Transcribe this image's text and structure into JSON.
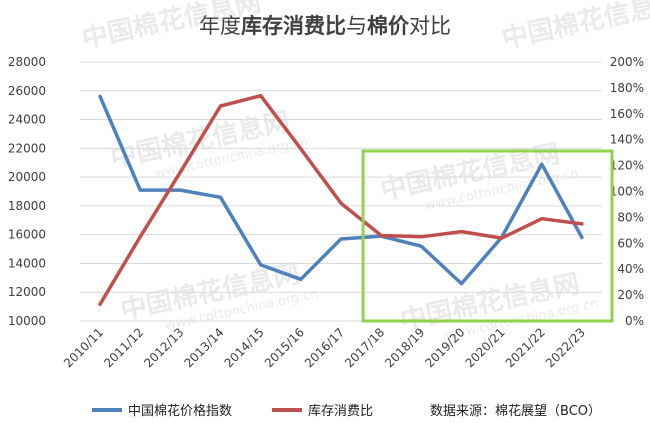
{
  "title_parts": {
    "prefix": "年度",
    "bold1": "库存消费比",
    "middle": "与",
    "bold2": "棉价",
    "suffix": "对比"
  },
  "source_text": "数据来源：棉花展望（BCO）",
  "watermark": {
    "text": "中国棉花信息网",
    "url": "www.cottonchina.org.cn"
  },
  "colors": {
    "index_line": "#4f81bd",
    "ratio_line": "#c0504d",
    "highlight_box": "#92d050",
    "grid": "#d9d9d9"
  },
  "chart_data": {
    "type": "line",
    "categories": [
      "2010/11",
      "2011/12",
      "2012/13",
      "2013/14",
      "2014/15",
      "2015/16",
      "2016/17",
      "2017/18",
      "2018/19",
      "2019/20",
      "2020/21",
      "2021/22",
      "2022/23"
    ],
    "y_left": {
      "min": 10000,
      "max": 28000,
      "step": 2000,
      "ticks": [
        "10000",
        "12000",
        "14000",
        "16000",
        "18000",
        "20000",
        "22000",
        "24000",
        "26000",
        "28000"
      ]
    },
    "y_right": {
      "min": 0,
      "max": 200,
      "step": 20,
      "ticks": [
        "0%",
        "20%",
        "40%",
        "60%",
        "80%",
        "100%",
        "120%",
        "140%",
        "160%",
        "180%",
        "200%"
      ]
    },
    "series": [
      {
        "name": "中国棉花价格指数",
        "axis": "left",
        "values": [
          25600,
          19100,
          19100,
          18600,
          13900,
          12900,
          15700,
          15900,
          15200,
          12600,
          15800,
          20900,
          15800
        ]
      },
      {
        "name": "库存消费比",
        "axis": "right",
        "values": [
          13,
          65,
          115,
          166,
          174,
          133,
          91,
          66,
          65,
          69,
          64,
          79,
          75
        ]
      }
    ],
    "legend_position": "bottom",
    "highlight_range": [
      "2017/18",
      "2022/23"
    ]
  }
}
